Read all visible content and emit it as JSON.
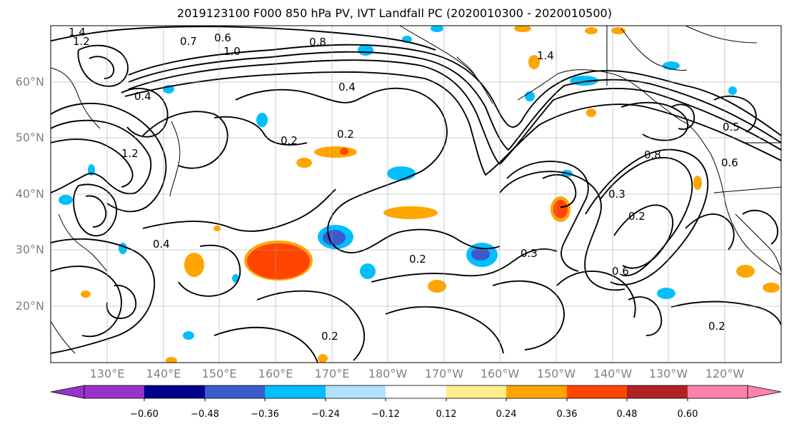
{
  "title": "2019123100 F000 850 hPa PV, IVT Landfall PC (2020010300 - 2020010500)",
  "map": {
    "lat_labels": [
      "60°N",
      "50°N",
      "40°N",
      "30°N",
      "20°N"
    ],
    "lon_labels": [
      "130°E",
      "140°E",
      "150°E",
      "160°E",
      "170°E",
      "180°W",
      "170°W",
      "160°W",
      "150°W",
      "140°W",
      "130°W",
      "120°W"
    ],
    "contour_labels": [
      "1.4",
      "1.2",
      "0.7",
      "0.6",
      "1.0",
      "0.8",
      "1.4",
      "0.4",
      "0.2",
      "0.2",
      "1.2",
      "0.4",
      "0.4",
      "0.2",
      "0.3",
      "0.2",
      "0.8",
      "0.6",
      "0.3",
      "0.6",
      "0.2",
      "0.2",
      "0.5"
    ]
  },
  "colorbar": {
    "ticks": [
      "−0.60",
      "−0.48",
      "−0.36",
      "−0.24",
      "−0.12",
      "0.12",
      "0.24",
      "0.36",
      "0.48",
      "0.60"
    ],
    "colors": [
      "#9932cc",
      "#00008b",
      "#3a5bcd",
      "#00bfff",
      "#b0e2ff",
      "#ffffff",
      "#ffec8b",
      "#ffa500",
      "#ff4500",
      "#b22222",
      "#ff82ab"
    ]
  }
}
